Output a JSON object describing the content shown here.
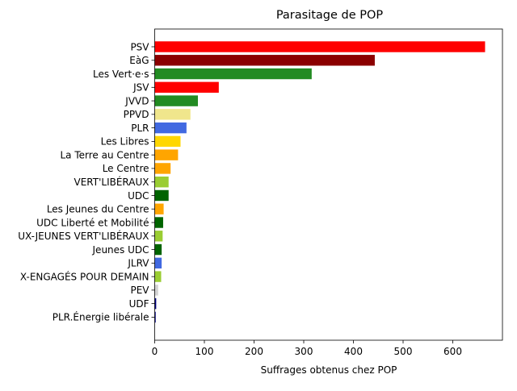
{
  "chart_data": {
    "type": "bar",
    "orientation": "horizontal",
    "title": "Parasitage de POP",
    "xlabel": "Suffrages obtenus chez POP",
    "ylabel": "",
    "xlim": [
      0,
      700
    ],
    "xticks": [
      0,
      100,
      200,
      300,
      400,
      500,
      600
    ],
    "grid": false,
    "categories": [
      "PSV",
      "EàG",
      "Les Vert·e·s",
      "JSV",
      "JVVD",
      "PPVD",
      "PLR",
      "Les Libres",
      "La Terre au Centre",
      "Le Centre",
      "VERT'LIBÉRAUX",
      "UDC",
      "Les Jeunes du Centre",
      "UDC Liberté et Mobilité",
      "UX-JEUNES VERT'LIBÉRAUX",
      "Jeunes UDC",
      "JLRV",
      "X-ENGAGÉS POUR DEMAIN",
      "PEV",
      "UDF",
      "PLR.Énergie libérale"
    ],
    "values": [
      665,
      443,
      316,
      129,
      87,
      72,
      64,
      52,
      47,
      32,
      28,
      28,
      18,
      17,
      16,
      14,
      14,
      13,
      7,
      3,
      2
    ],
    "colors": [
      "#ff0000",
      "#8b0000",
      "#228b22",
      "#ff0000",
      "#228b22",
      "#f0e68c",
      "#4169e1",
      "#ffd700",
      "#ffa500",
      "#ffa500",
      "#9acd32",
      "#006400",
      "#ffa500",
      "#006400",
      "#9acd32",
      "#006400",
      "#4169e1",
      "#9acd32",
      "#d3d3d3",
      "#000080",
      "#000080"
    ]
  }
}
